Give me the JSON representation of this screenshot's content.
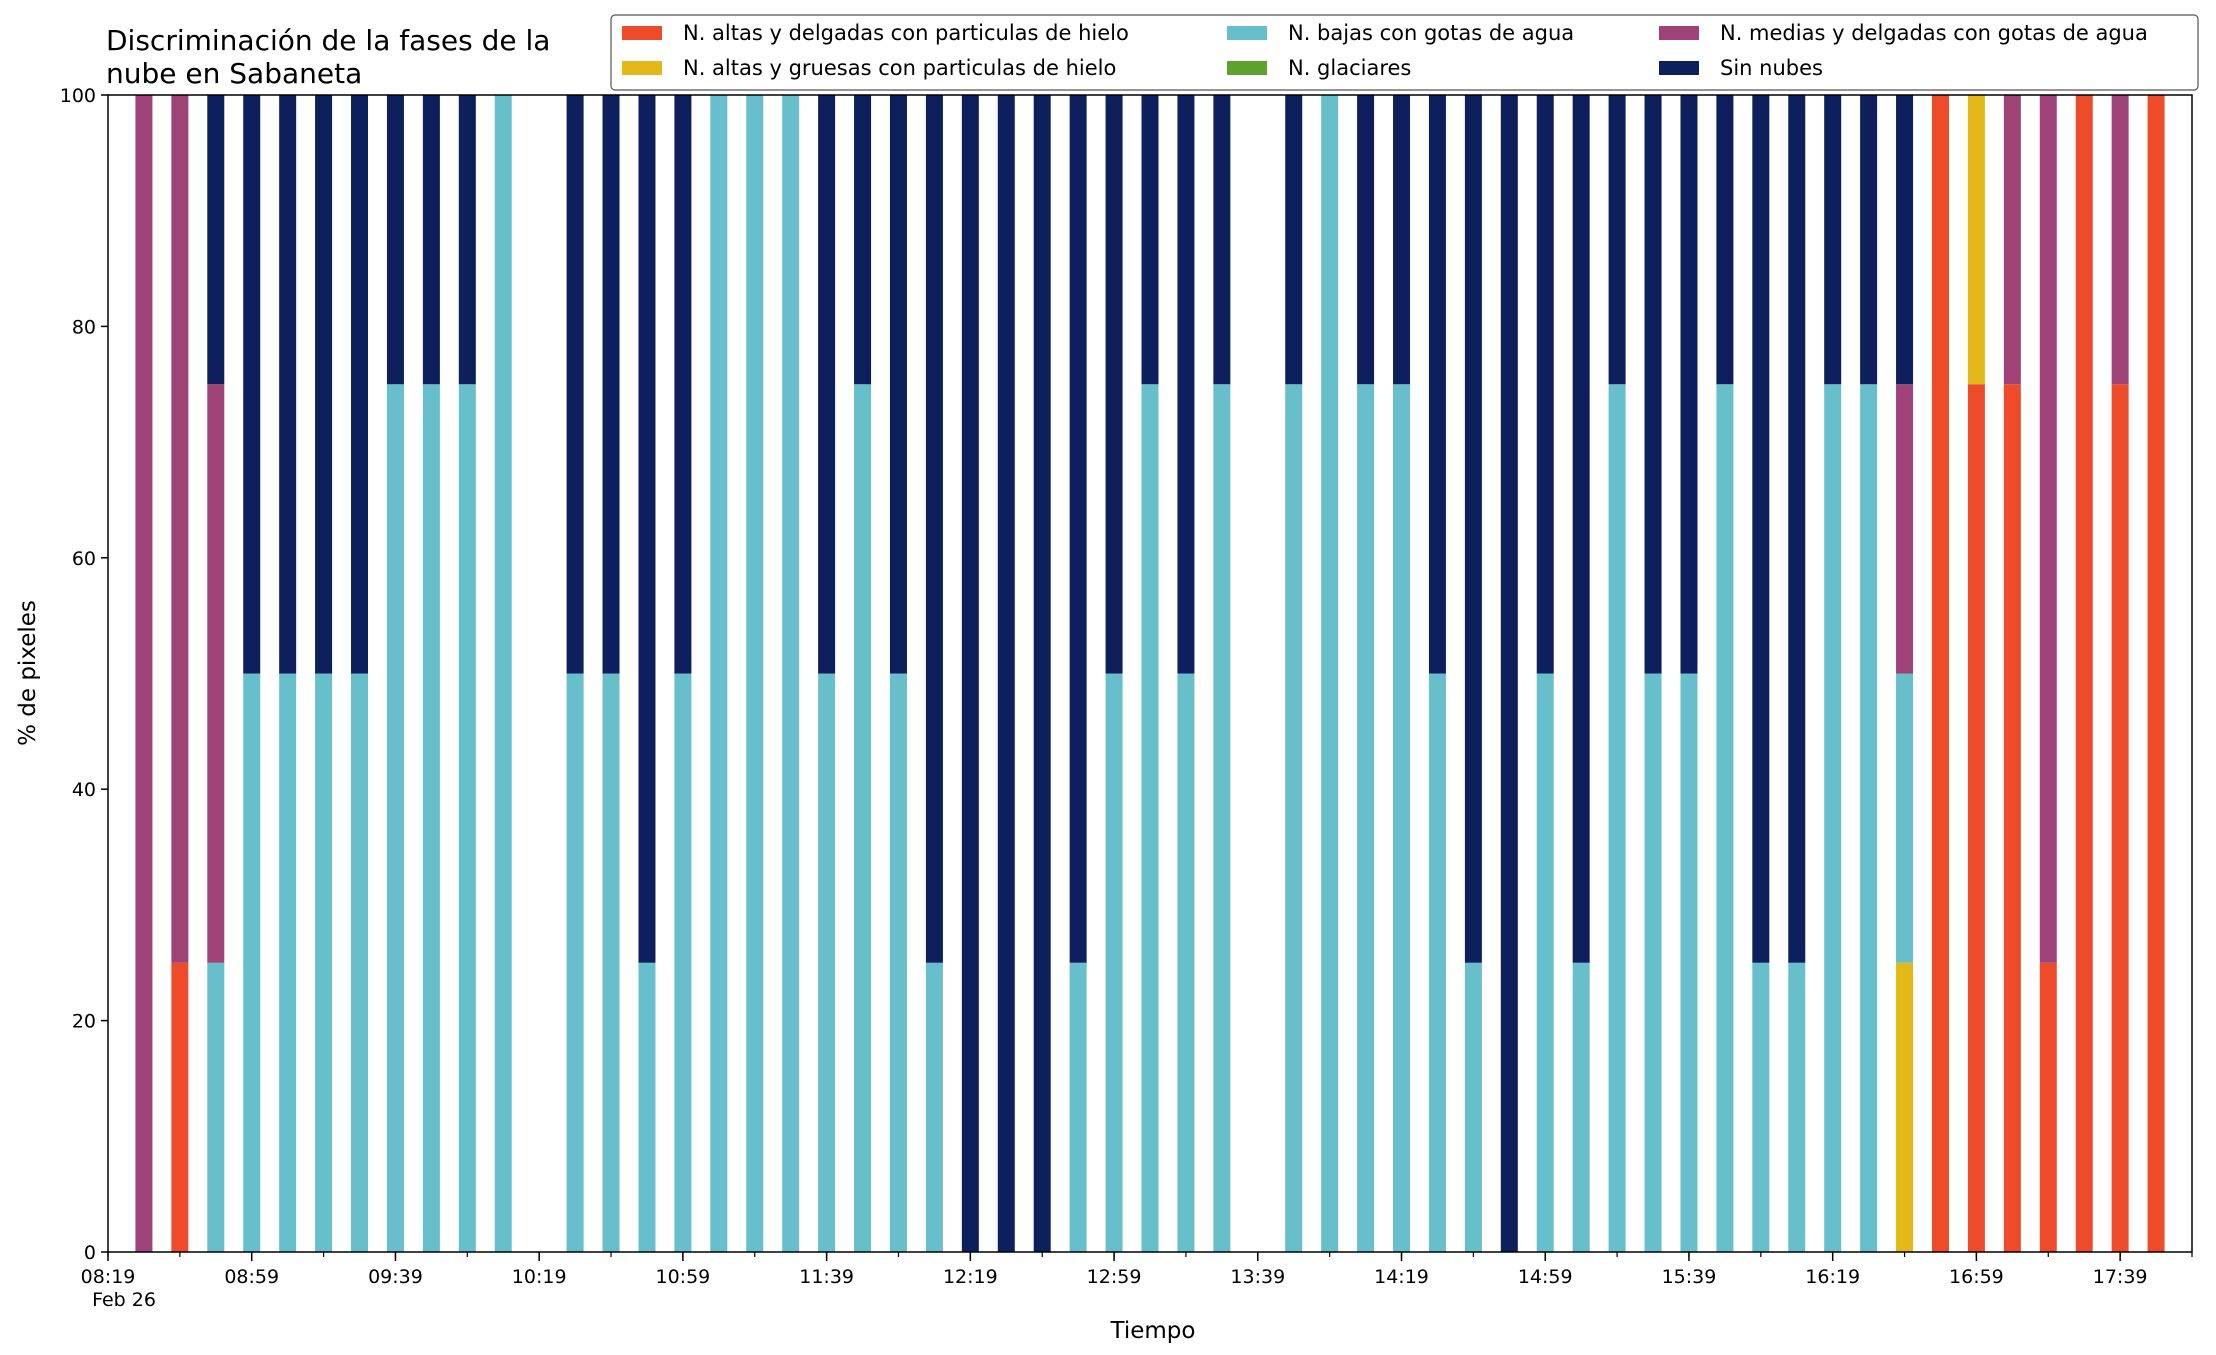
{
  "chart_data": {
    "type": "bar",
    "stacked": true,
    "title_lines": [
      "Discriminación de la fases de la",
      "nube en Sabaneta"
    ],
    "xlabel": "Tiempo",
    "ylabel": "% de pixeles",
    "ylim": [
      0,
      100
    ],
    "yticks": [
      0,
      20,
      40,
      60,
      80,
      100
    ],
    "grid": false,
    "legend_position": "top-right",
    "date_label": "Feb 26",
    "xlim": [
      "08:19",
      "17:59"
    ],
    "xticks": [
      "08:19",
      "08:59",
      "09:39",
      "10:19",
      "10:59",
      "11:39",
      "12:19",
      "12:59",
      "13:39",
      "14:19",
      "14:59",
      "15:39",
      "16:19",
      "16:59",
      "17:39"
    ],
    "minor_tick_step_minutes": 20,
    "x": [
      "08:29",
      "08:39",
      "08:49",
      "08:59",
      "09:09",
      "09:19",
      "09:29",
      "09:39",
      "09:49",
      "09:59",
      "10:09",
      "10:19",
      "10:29",
      "10:39",
      "10:49",
      "10:59",
      "11:09",
      "11:19",
      "11:29",
      "11:39",
      "11:49",
      "11:59",
      "12:09",
      "12:19",
      "12:29",
      "12:39",
      "12:49",
      "12:59",
      "13:09",
      "13:19",
      "13:29",
      "13:39",
      "13:49",
      "13:59",
      "14:09",
      "14:19",
      "14:29",
      "14:39",
      "14:49",
      "14:59",
      "15:09",
      "15:19",
      "15:29",
      "15:39",
      "15:49",
      "15:59",
      "16:09",
      "16:19",
      "16:29",
      "16:39",
      "16:49",
      "16:59",
      "17:09",
      "17:19",
      "17:29",
      "17:39",
      "17:49"
    ],
    "series": [
      {
        "name": "N. altas y delgadas con particulas de hielo",
        "color": "#ee4b2b",
        "values": [
          0,
          25,
          0,
          0,
          0,
          0,
          0,
          0,
          0,
          0,
          0,
          0,
          0,
          0,
          0,
          0,
          0,
          0,
          0,
          0,
          0,
          0,
          0,
          0,
          0,
          0,
          0,
          0,
          0,
          0,
          0,
          0,
          0,
          0,
          0,
          0,
          0,
          0,
          0,
          0,
          0,
          0,
          0,
          0,
          0,
          0,
          0,
          0,
          0,
          0,
          100,
          75,
          75,
          25,
          100,
          75,
          100
        ]
      },
      {
        "name": "N. altas y gruesas con particulas de hielo",
        "color": "#e5b81a",
        "values": [
          0,
          0,
          0,
          0,
          0,
          0,
          0,
          0,
          0,
          0,
          0,
          0,
          0,
          0,
          0,
          0,
          0,
          0,
          0,
          0,
          0,
          0,
          0,
          0,
          0,
          0,
          0,
          0,
          0,
          0,
          0,
          0,
          0,
          0,
          0,
          0,
          0,
          0,
          0,
          0,
          0,
          0,
          0,
          0,
          0,
          0,
          0,
          0,
          0,
          25,
          0,
          25,
          0,
          0,
          0,
          0,
          0
        ]
      },
      {
        "name": "N. bajas con gotas de agua",
        "color": "#66bfca",
        "values": [
          0,
          0,
          25,
          50,
          50,
          50,
          50,
          75,
          75,
          75,
          100,
          0,
          50,
          50,
          25,
          50,
          100,
          100,
          100,
          50,
          75,
          50,
          25,
          0,
          0,
          0,
          25,
          50,
          75,
          50,
          75,
          0,
          75,
          100,
          75,
          75,
          50,
          25,
          0,
          50,
          25,
          75,
          50,
          50,
          75,
          25,
          25,
          75,
          75,
          25,
          0,
          0,
          0,
          0,
          0,
          0,
          0
        ]
      },
      {
        "name": "N. glaciares",
        "color": "#5ea22e",
        "values": [
          0,
          0,
          0,
          0,
          0,
          0,
          0,
          0,
          0,
          0,
          0,
          0,
          0,
          0,
          0,
          0,
          0,
          0,
          0,
          0,
          0,
          0,
          0,
          0,
          0,
          0,
          0,
          0,
          0,
          0,
          0,
          0,
          0,
          0,
          0,
          0,
          0,
          0,
          0,
          0,
          0,
          0,
          0,
          0,
          0,
          0,
          0,
          0,
          0,
          0,
          0,
          0,
          0,
          0,
          0,
          0,
          0
        ]
      },
      {
        "name": "N. medias y delgadas con gotas de agua",
        "color": "#9e4277",
        "values": [
          100,
          75,
          50,
          0,
          0,
          0,
          0,
          0,
          0,
          0,
          0,
          0,
          0,
          0,
          0,
          0,
          0,
          0,
          0,
          0,
          0,
          0,
          0,
          0,
          0,
          0,
          0,
          0,
          0,
          0,
          0,
          0,
          0,
          0,
          0,
          0,
          0,
          0,
          0,
          0,
          0,
          0,
          0,
          0,
          0,
          0,
          0,
          0,
          0,
          25,
          0,
          0,
          25,
          75,
          0,
          25,
          0
        ]
      },
      {
        "name": "Sin nubes",
        "color": "#0d1f5c",
        "values": [
          0,
          0,
          25,
          50,
          50,
          50,
          50,
          25,
          25,
          25,
          0,
          0,
          50,
          50,
          75,
          50,
          0,
          0,
          0,
          50,
          25,
          50,
          75,
          100,
          100,
          100,
          75,
          50,
          25,
          50,
          25,
          0,
          25,
          0,
          25,
          25,
          50,
          75,
          100,
          50,
          75,
          25,
          50,
          50,
          25,
          75,
          75,
          25,
          25,
          25,
          0,
          0,
          0,
          0,
          0,
          0,
          0
        ]
      }
    ]
  }
}
